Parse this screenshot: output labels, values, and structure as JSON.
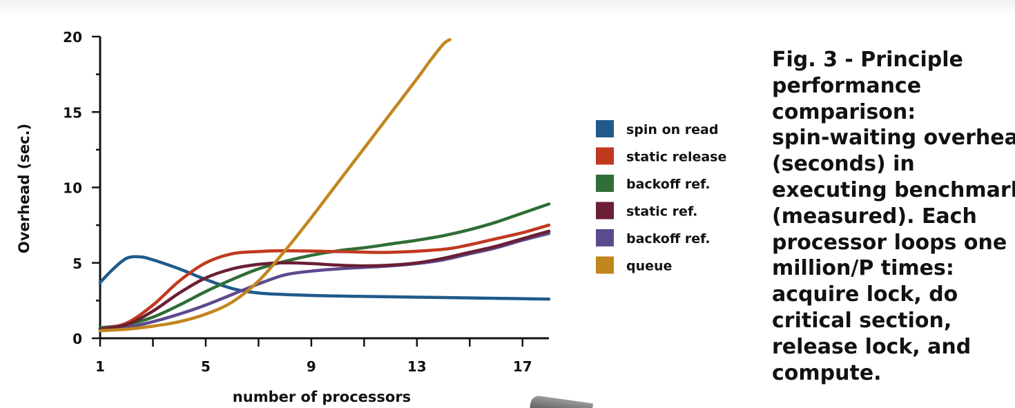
{
  "chart_data": {
    "type": "line",
    "ylabel": "Overhead (sec.)",
    "xlabel": "number of processors",
    "xlim": [
      1,
      18
    ],
    "ylim": [
      0,
      20
    ],
    "x_ticks": [
      1,
      5,
      9,
      13,
      17
    ],
    "y_ticks": [
      0,
      5,
      10,
      15,
      20
    ],
    "grid": false,
    "legend_position": "right",
    "series": [
      {
        "name": "spin on read",
        "color": "#1f5a8a",
        "points": [
          [
            1,
            3.7
          ],
          [
            1.5,
            4.6
          ],
          [
            2,
            5.3
          ],
          [
            2.5,
            5.4
          ],
          [
            3,
            5.2
          ],
          [
            4,
            4.6
          ],
          [
            5,
            3.9
          ],
          [
            6,
            3.3
          ],
          [
            7,
            3.0
          ],
          [
            8,
            2.9
          ],
          [
            10,
            2.8
          ],
          [
            12,
            2.75
          ],
          [
            14,
            2.7
          ],
          [
            16,
            2.65
          ],
          [
            18,
            2.6
          ]
        ]
      },
      {
        "name": "static release",
        "color": "#c0391f",
        "points": [
          [
            1,
            0.6
          ],
          [
            2,
            1.0
          ],
          [
            3,
            2.2
          ],
          [
            4,
            3.8
          ],
          [
            5,
            5.0
          ],
          [
            6,
            5.6
          ],
          [
            7,
            5.75
          ],
          [
            8,
            5.8
          ],
          [
            10,
            5.75
          ],
          [
            12,
            5.7
          ],
          [
            14,
            5.9
          ],
          [
            15,
            6.2
          ],
          [
            16,
            6.6
          ],
          [
            17,
            7.0
          ],
          [
            18,
            7.5
          ]
        ]
      },
      {
        "name": "backoff ref.",
        "color": "#2f6e36",
        "points": [
          [
            1,
            0.7
          ],
          [
            2,
            0.9
          ],
          [
            3,
            1.4
          ],
          [
            4,
            2.2
          ],
          [
            5,
            3.1
          ],
          [
            6,
            3.9
          ],
          [
            7,
            4.6
          ],
          [
            8,
            5.1
          ],
          [
            9,
            5.5
          ],
          [
            10,
            5.8
          ],
          [
            11,
            6.0
          ],
          [
            12,
            6.25
          ],
          [
            13,
            6.5
          ],
          [
            14,
            6.8
          ],
          [
            15,
            7.2
          ],
          [
            16,
            7.7
          ],
          [
            17,
            8.3
          ],
          [
            18,
            8.9
          ]
        ]
      },
      {
        "name": "static ref.",
        "color": "#6a1f34",
        "points": [
          [
            1,
            0.6
          ],
          [
            2,
            0.9
          ],
          [
            3,
            1.8
          ],
          [
            4,
            3.0
          ],
          [
            5,
            4.0
          ],
          [
            6,
            4.6
          ],
          [
            7,
            4.9
          ],
          [
            8,
            5.0
          ],
          [
            9,
            4.95
          ],
          [
            10,
            4.85
          ],
          [
            11,
            4.8
          ],
          [
            12,
            4.85
          ],
          [
            13,
            5.0
          ],
          [
            14,
            5.3
          ],
          [
            15,
            5.7
          ],
          [
            16,
            6.1
          ],
          [
            17,
            6.6
          ],
          [
            18,
            7.1
          ]
        ]
      },
      {
        "name": "backoff ref.",
        "color": "#5c4a8e",
        "points": [
          [
            1,
            0.5
          ],
          [
            2,
            0.7
          ],
          [
            3,
            1.1
          ],
          [
            4,
            1.6
          ],
          [
            5,
            2.2
          ],
          [
            6,
            2.9
          ],
          [
            7,
            3.6
          ],
          [
            8,
            4.2
          ],
          [
            9,
            4.45
          ],
          [
            10,
            4.6
          ],
          [
            11,
            4.7
          ],
          [
            12,
            4.8
          ],
          [
            13,
            4.95
          ],
          [
            14,
            5.2
          ],
          [
            15,
            5.6
          ],
          [
            16,
            6.0
          ],
          [
            17,
            6.5
          ],
          [
            18,
            6.95
          ]
        ]
      },
      {
        "name": "queue",
        "color": "#c2861e",
        "points": [
          [
            1,
            0.5
          ],
          [
            2,
            0.6
          ],
          [
            3,
            0.8
          ],
          [
            4,
            1.1
          ],
          [
            5,
            1.6
          ],
          [
            6,
            2.4
          ],
          [
            7,
            3.8
          ],
          [
            8,
            5.8
          ],
          [
            9,
            8.0
          ],
          [
            10,
            10.3
          ],
          [
            11,
            12.6
          ],
          [
            12,
            14.9
          ],
          [
            13,
            17.2
          ],
          [
            13.5,
            18.4
          ],
          [
            14,
            19.5
          ],
          [
            14.25,
            19.8
          ]
        ]
      }
    ]
  },
  "caption": "Fig. 3 - Principle\nperformance\ncomparison:\nspin-waiting overhead\n(seconds) in\nexecuting benchmark\n(measured). Each\nprocessor loops one\nmillion/P times:\nacquire lock, do\ncritical section,\nrelease lock, and\ncompute."
}
